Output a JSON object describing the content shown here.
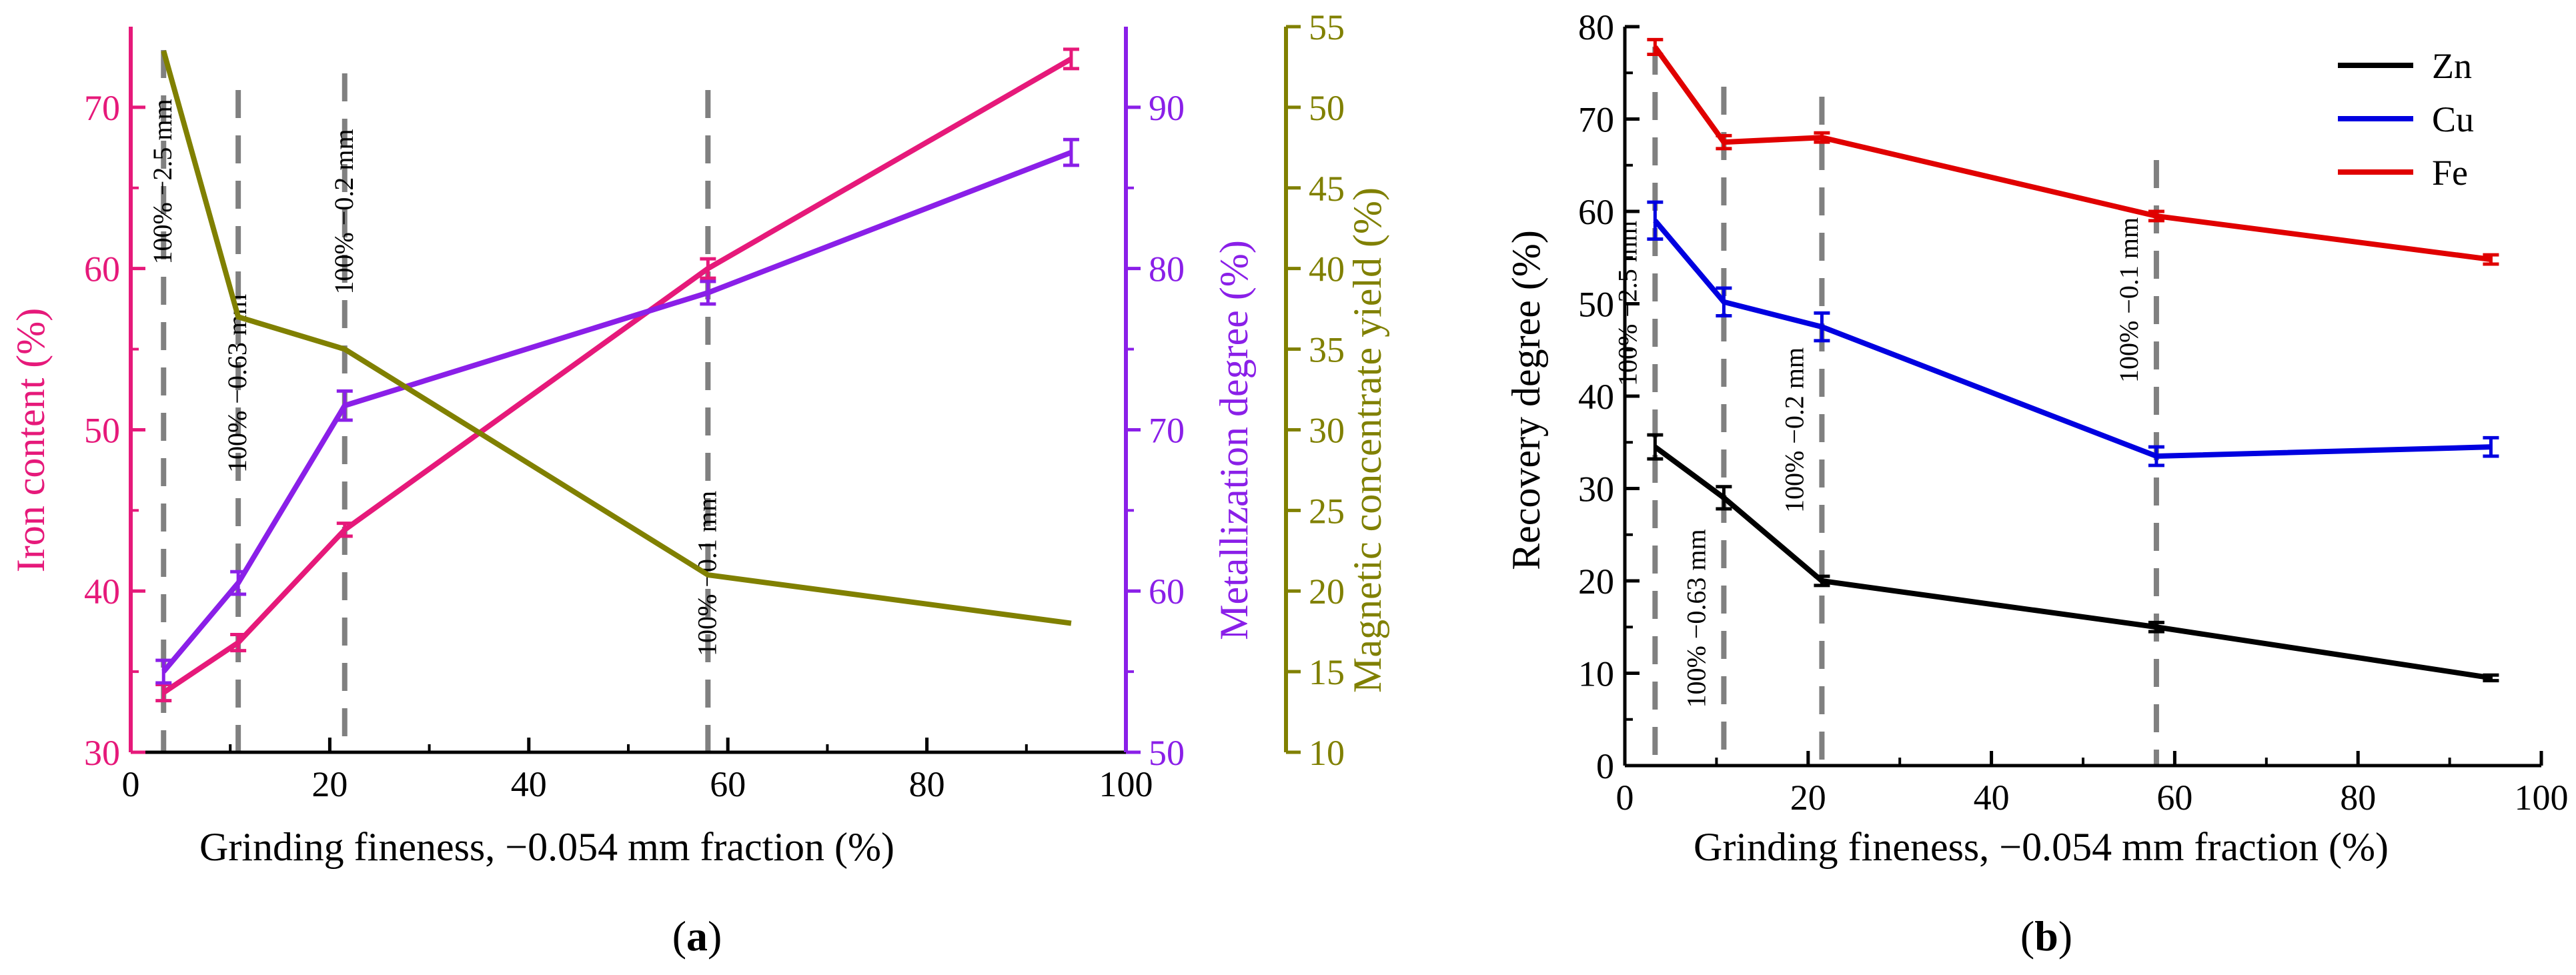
{
  "colors": {
    "iron": "#e6197a",
    "metal": "#8a1fe8",
    "yield": "#808000",
    "zn": "#000000",
    "cu": "#0000e0",
    "fe": "#e00000",
    "axis": "#000000",
    "marker": "#808080"
  },
  "chart_data": [
    {
      "type": "line",
      "panel_label": "a",
      "xlabel": "Grinding fineness, −0.054 mm fraction (%)",
      "xlim": [
        0,
        100
      ],
      "xticks": [
        "0",
        "20",
        "40",
        "60",
        "80",
        "100"
      ],
      "x": [
        3.3,
        10.8,
        21.5,
        58,
        94.5
      ],
      "markers": [
        "100% −2.5 mm",
        "100% −0.63 mm",
        "100% −0.2 mm",
        "100% −0.1 mm"
      ],
      "axes": {
        "iron": {
          "label": "Iron content (%)",
          "ylim": [
            30,
            75
          ],
          "ticks": [
            "30",
            "40",
            "50",
            "60",
            "70"
          ]
        },
        "metal": {
          "label": "Metallization degree (%)",
          "ylim": [
            50,
            95
          ],
          "ticks": [
            "50",
            "60",
            "70",
            "80",
            "90"
          ]
        },
        "yield": {
          "label": "Magnetic concentrate yield (%)",
          "ylim": [
            10,
            55
          ],
          "ticks": [
            "10",
            "15",
            "20",
            "25",
            "30",
            "35",
            "40",
            "45",
            "50",
            "55"
          ]
        }
      },
      "series": [
        {
          "key": "iron",
          "values": [
            33.7,
            36.8,
            43.8,
            60.0,
            73.0
          ],
          "errors": [
            0.5,
            0.5,
            0.4,
            0.6,
            0.6
          ]
        },
        {
          "key": "metal",
          "values": [
            55.0,
            60.5,
            71.5,
            78.5,
            87.2
          ],
          "errors": [
            0.7,
            0.7,
            0.9,
            0.7,
            0.8
          ]
        },
        {
          "key": "yield",
          "values": [
            53.5,
            37.0,
            35.0,
            21.0,
            18.0
          ],
          "errors": [
            0,
            0,
            0,
            0,
            0
          ]
        }
      ]
    },
    {
      "type": "line",
      "panel_label": "b",
      "xlabel": "Grinding fineness, −0.054 mm fraction (%)",
      "ylabel": "Recovery degree (%)",
      "xlim": [
        0,
        100
      ],
      "ylim": [
        0,
        80
      ],
      "xticks": [
        "0",
        "20",
        "40",
        "60",
        "80",
        "100"
      ],
      "yticks": [
        "0",
        "10",
        "20",
        "30",
        "40",
        "50",
        "60",
        "70",
        "80"
      ],
      "x": [
        3.3,
        10.8,
        21.5,
        58,
        94.5
      ],
      "markers": [
        "100% −2.5 mm",
        "100% −0.63 mm",
        "100% −0.2 mm",
        "100% −0.1 mm"
      ],
      "legend_position": "top-right",
      "series": [
        {
          "key": "zn",
          "name": "Zn",
          "values": [
            34.5,
            29.0,
            20.0,
            15.0,
            9.5
          ],
          "errors": [
            1.3,
            1.2,
            0.5,
            0.5,
            0.3
          ]
        },
        {
          "key": "cu",
          "name": "Cu",
          "values": [
            59.0,
            50.2,
            47.5,
            33.5,
            34.5
          ],
          "errors": [
            2.0,
            1.5,
            1.5,
            1.0,
            1.0
          ]
        },
        {
          "key": "fe",
          "name": "Fe",
          "values": [
            77.8,
            67.5,
            68.0,
            59.5,
            54.8
          ],
          "errors": [
            0.8,
            0.7,
            0.5,
            0.5,
            0.5
          ]
        }
      ]
    }
  ]
}
